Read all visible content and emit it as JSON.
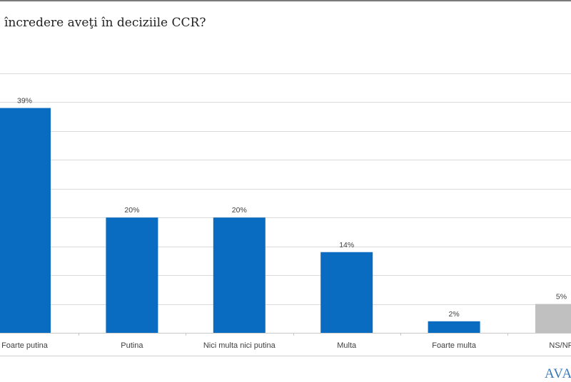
{
  "title": "încredere aveţi în deciziile CCR?",
  "logo_text": "AVAN",
  "chart_data": {
    "type": "bar",
    "title": "încredere aveţi în deciziile CCR?",
    "categories": [
      "Foarte putina",
      "Putina",
      "Nici multa nici putina",
      "Multa",
      "Foarte multa",
      "NS/NR"
    ],
    "values": [
      39,
      20,
      20,
      14,
      2,
      5
    ],
    "data_labels": [
      "39%",
      "20%",
      "20%",
      "14%",
      "2%",
      "5%"
    ],
    "colors": [
      "#0a6cc0",
      "#0a6cc0",
      "#0a6cc0",
      "#0a6cc0",
      "#0a6cc0",
      "#c0c0c0"
    ],
    "ylim": [
      0,
      45
    ],
    "grid": true,
    "gridline_step": 5,
    "xlabel": "",
    "ylabel": ""
  }
}
